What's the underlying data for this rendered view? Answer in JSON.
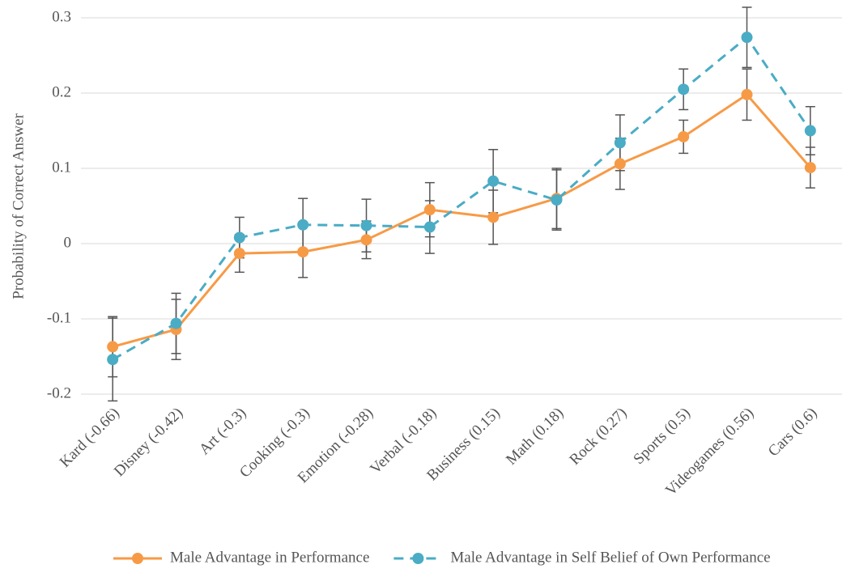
{
  "chart_data": {
    "type": "line",
    "y_label": "Probability of Correct Answer",
    "categories": [
      "Kard (-0.66)",
      "Disney (-0.42)",
      "Art (-0.3)",
      "Cooking (-0.3)",
      "Emotion (-0.28)",
      "Verbal (-0.18)",
      "Business (0.15)",
      "Math (0.18)",
      "Rock (0.27)",
      "Sports (0.5)",
      "Videogames (0.56)",
      "Cars (0.6)"
    ],
    "series": [
      {
        "name": "Male Advantage in Performance",
        "color": "#f79a46",
        "dashed": false,
        "values": [
          -0.137,
          -0.114,
          -0.013,
          -0.011,
          0.005,
          0.045,
          0.035,
          0.06,
          0.106,
          0.142,
          0.198,
          0.101
        ],
        "errors": [
          0.04,
          0.04,
          0.025,
          0.034,
          0.025,
          0.036,
          0.036,
          0.04,
          0.034,
          0.022,
          0.034,
          0.027
        ]
      },
      {
        "name": "Male Advantage in Self Belief of Own Performance",
        "color": "#4aacc5",
        "dashed": true,
        "values": [
          -0.154,
          -0.106,
          0.008,
          0.025,
          0.024,
          0.022,
          0.083,
          0.058,
          0.134,
          0.205,
          0.274,
          0.15
        ],
        "errors": [
          0.055,
          0.04,
          0.027,
          0.035,
          0.035,
          0.035,
          0.042,
          0.04,
          0.037,
          0.027,
          0.04,
          0.032
        ]
      }
    ],
    "ylim": [
      -0.2,
      0.3
    ],
    "yticks": [
      -0.2,
      -0.1,
      0,
      0.1,
      0.2,
      0.3
    ],
    "grid": true,
    "legend": "bottom"
  }
}
